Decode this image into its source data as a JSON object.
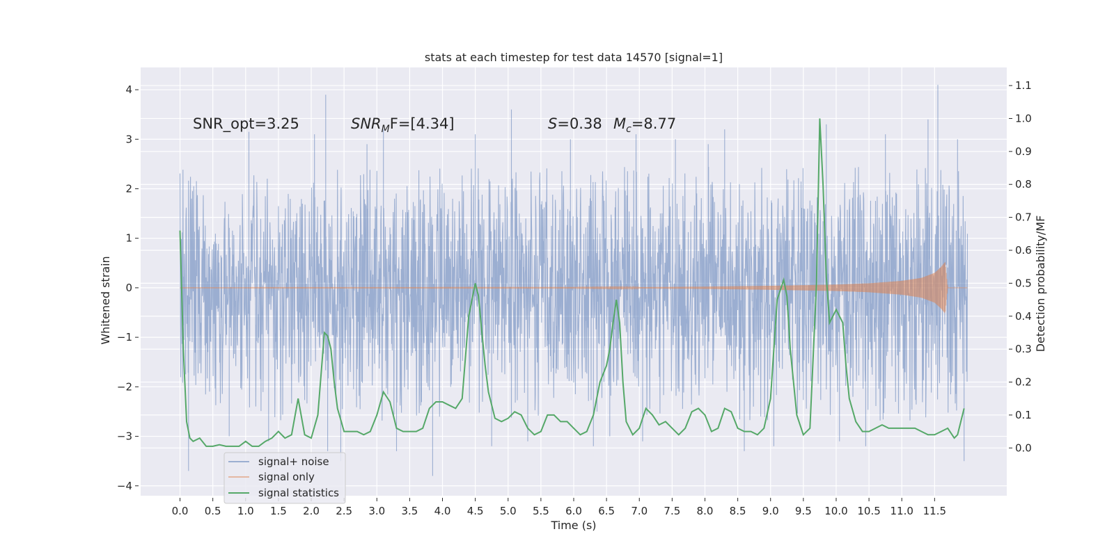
{
  "chart_data": {
    "type": "line",
    "title": "stats at each timestep for test data 14570 [signal=1]",
    "xlabel": "Time (s)",
    "ylabel": "Whitened strain",
    "ylabel_right": "Detection probability/MF",
    "xlim": [
      -0.6,
      12.6
    ],
    "ylim": [
      -4.2,
      4.45
    ],
    "ylim_right": [
      -0.145,
      1.155
    ],
    "x_ticks": [
      "0.0",
      "0.5",
      "1.0",
      "1.5",
      "2.0",
      "2.5",
      "3.0",
      "3.5",
      "4.0",
      "4.5",
      "5.0",
      "5.5",
      "6.0",
      "6.5",
      "7.0",
      "7.5",
      "8.0",
      "8.5",
      "9.0",
      "9.5",
      "10.0",
      "10.5",
      "11.0",
      "11.5"
    ],
    "y_ticks": [
      "4",
      "3",
      "2",
      "1",
      "0",
      "−1",
      "−2",
      "−3",
      "−4"
    ],
    "y_ticks_right": [
      "1.1",
      "1.0",
      "0.9",
      "0.8",
      "0.7",
      "0.6",
      "0.5",
      "0.4",
      "0.3",
      "0.2",
      "0.1",
      "0.0"
    ],
    "grid": true,
    "legend_position": "lower-left",
    "annotations": {
      "snr_opt": "SNR_opt=3.25",
      "snr_mf_main": "SNR",
      "snr_mf_sub": "M",
      "snr_mf_tail": "F=[4.34]",
      "s_main": "S",
      "s_tail": "=0.38",
      "mc_main": "M",
      "mc_sub": "c",
      "mc_tail": "=8.77"
    },
    "series": [
      {
        "name": "signal+ noise",
        "color": "#4c72b0",
        "description": "dense whitened-strain time series, bulk between about -1.6 and +1.4, spikes to about +4.1 and -3.8",
        "x_range": [
          0.0,
          12.0
        ],
        "bulk_range": [
          -1.6,
          1.4
        ],
        "spikes": [
          {
            "x": 0.13,
            "y": -3.7
          },
          {
            "x": 0.75,
            "y": -3.0
          },
          {
            "x": 1.05,
            "y": 3.15
          },
          {
            "x": 1.35,
            "y": -3.1
          },
          {
            "x": 2.05,
            "y": 3.1
          },
          {
            "x": 2.22,
            "y": 3.9
          },
          {
            "x": 2.25,
            "y": -3.3
          },
          {
            "x": 2.45,
            "y": -3.5
          },
          {
            "x": 2.85,
            "y": 2.9
          },
          {
            "x": 3.1,
            "y": 3.2
          },
          {
            "x": 3.3,
            "y": -3.3
          },
          {
            "x": 3.85,
            "y": -3.8
          },
          {
            "x": 4.5,
            "y": 3.1
          },
          {
            "x": 4.75,
            "y": -3.2
          },
          {
            "x": 5.05,
            "y": 3.6
          },
          {
            "x": 5.3,
            "y": -3.1
          },
          {
            "x": 5.95,
            "y": 3.0
          },
          {
            "x": 6.3,
            "y": -3.2
          },
          {
            "x": 6.55,
            "y": -3.0
          },
          {
            "x": 6.95,
            "y": 3.1
          },
          {
            "x": 7.05,
            "y": -3.1
          },
          {
            "x": 7.55,
            "y": 3.0
          },
          {
            "x": 8.05,
            "y": 2.9
          },
          {
            "x": 8.3,
            "y": 3.2
          },
          {
            "x": 8.6,
            "y": -3.3
          },
          {
            "x": 9.05,
            "y": -3.2
          },
          {
            "x": 9.85,
            "y": 3.3
          },
          {
            "x": 10.05,
            "y": -3.1
          },
          {
            "x": 10.45,
            "y": -3.2
          },
          {
            "x": 10.75,
            "y": 3.1
          },
          {
            "x": 11.4,
            "y": 3.4
          },
          {
            "x": 11.55,
            "y": 4.1
          },
          {
            "x": 11.85,
            "y": 3.0
          },
          {
            "x": 11.95,
            "y": -3.5
          }
        ]
      },
      {
        "name": "signal only",
        "color": "#dd8452",
        "description": "chirp waveform around zero; amplitude grows with time",
        "x": [
          0.0,
          6.0,
          7.0,
          8.0,
          9.0,
          10.0,
          10.5,
          11.0,
          11.3,
          11.5,
          11.6,
          11.66,
          11.7,
          12.0
        ],
        "amplitude": [
          0.003,
          0.006,
          0.012,
          0.022,
          0.04,
          0.065,
          0.09,
          0.14,
          0.2,
          0.3,
          0.42,
          0.52,
          0.0,
          0.0
        ]
      },
      {
        "name": "signal statistics",
        "color": "#55a868",
        "axis": "right",
        "x": [
          0.0,
          0.05,
          0.1,
          0.15,
          0.2,
          0.3,
          0.4,
          0.5,
          0.6,
          0.7,
          0.8,
          0.9,
          1.0,
          1.1,
          1.2,
          1.3,
          1.4,
          1.5,
          1.6,
          1.7,
          1.8,
          1.9,
          2.0,
          2.1,
          2.2,
          2.25,
          2.3,
          2.35,
          2.4,
          2.5,
          2.6,
          2.7,
          2.8,
          2.9,
          3.0,
          3.1,
          3.2,
          3.3,
          3.4,
          3.5,
          3.6,
          3.7,
          3.8,
          3.9,
          4.0,
          4.1,
          4.2,
          4.3,
          4.4,
          4.5,
          4.55,
          4.6,
          4.65,
          4.7,
          4.8,
          4.9,
          5.0,
          5.1,
          5.2,
          5.3,
          5.4,
          5.5,
          5.6,
          5.7,
          5.8,
          5.9,
          6.0,
          6.1,
          6.2,
          6.3,
          6.4,
          6.5,
          6.55,
          6.6,
          6.65,
          6.7,
          6.75,
          6.8,
          6.9,
          7.0,
          7.1,
          7.2,
          7.3,
          7.4,
          7.5,
          7.6,
          7.7,
          7.8,
          7.9,
          8.0,
          8.1,
          8.2,
          8.3,
          8.4,
          8.5,
          8.6,
          8.7,
          8.8,
          8.9,
          9.0,
          9.1,
          9.2,
          9.25,
          9.3,
          9.4,
          9.5,
          9.6,
          9.7,
          9.75,
          9.8,
          9.85,
          9.9,
          10.0,
          10.1,
          10.15,
          10.2,
          10.3,
          10.4,
          10.5,
          10.6,
          10.7,
          10.8,
          10.9,
          11.0,
          11.1,
          11.2,
          11.3,
          11.4,
          11.5,
          11.6,
          11.7,
          11.8,
          11.85,
          11.9,
          11.95
        ],
        "y": [
          0.66,
          0.3,
          0.08,
          0.03,
          0.02,
          0.03,
          0.005,
          0.005,
          0.01,
          0.005,
          0.005,
          0.005,
          0.02,
          0.005,
          0.005,
          0.02,
          0.03,
          0.05,
          0.03,
          0.04,
          0.15,
          0.04,
          0.03,
          0.1,
          0.35,
          0.34,
          0.3,
          0.2,
          0.12,
          0.05,
          0.05,
          0.05,
          0.04,
          0.05,
          0.1,
          0.17,
          0.14,
          0.06,
          0.05,
          0.05,
          0.05,
          0.06,
          0.12,
          0.14,
          0.14,
          0.13,
          0.12,
          0.15,
          0.4,
          0.5,
          0.46,
          0.35,
          0.25,
          0.17,
          0.09,
          0.08,
          0.09,
          0.11,
          0.1,
          0.06,
          0.04,
          0.05,
          0.1,
          0.1,
          0.08,
          0.08,
          0.06,
          0.04,
          0.05,
          0.1,
          0.2,
          0.25,
          0.3,
          0.38,
          0.45,
          0.38,
          0.2,
          0.08,
          0.04,
          0.06,
          0.12,
          0.1,
          0.07,
          0.08,
          0.06,
          0.04,
          0.06,
          0.11,
          0.12,
          0.1,
          0.05,
          0.06,
          0.12,
          0.11,
          0.06,
          0.05,
          0.05,
          0.04,
          0.06,
          0.15,
          0.45,
          0.51,
          0.46,
          0.3,
          0.1,
          0.04,
          0.06,
          0.5,
          1.0,
          0.8,
          0.52,
          0.38,
          0.42,
          0.38,
          0.25,
          0.15,
          0.08,
          0.05,
          0.05,
          0.06,
          0.07,
          0.06,
          0.06,
          0.06,
          0.06,
          0.06,
          0.05,
          0.04,
          0.04,
          0.05,
          0.06,
          0.03,
          0.04,
          0.08,
          0.12
        ]
      }
    ]
  }
}
